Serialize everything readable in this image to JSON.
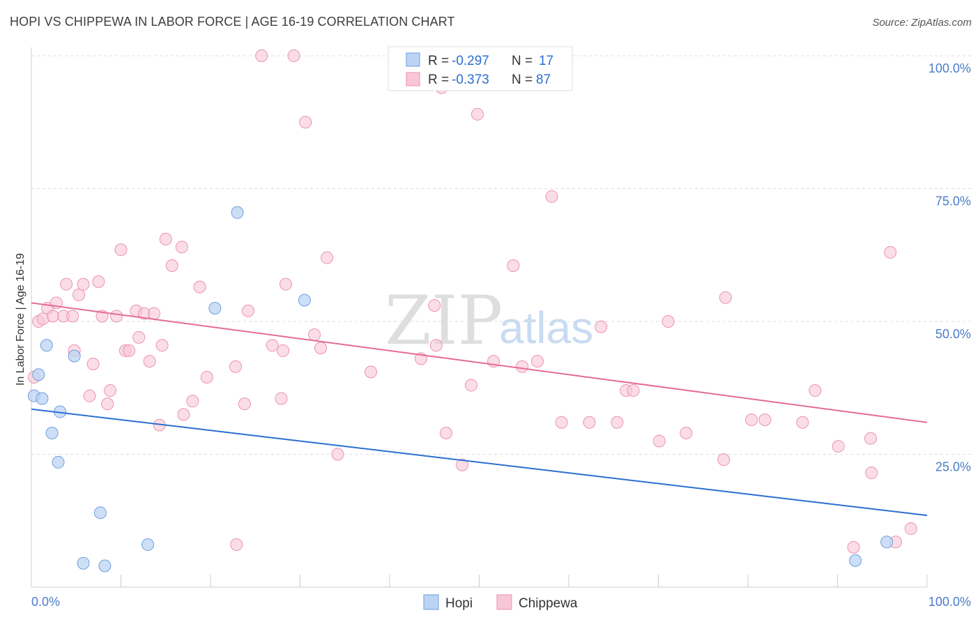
{
  "header": {
    "title": "HOPI VS CHIPPEWA IN LABOR FORCE | AGE 16-19 CORRELATION CHART",
    "source": "Source: ZipAtlas.com"
  },
  "watermark": {
    "zip": "ZIP",
    "atlas": "atlas"
  },
  "legend_top": {
    "hopi": {
      "r_label": "R = ",
      "r_value": "-0.297",
      "n_label": "N = ",
      "n_value": "17"
    },
    "chippewa": {
      "r_label": "R = ",
      "r_value": "-0.373",
      "n_label": "N = ",
      "n_value": "87"
    }
  },
  "legend_bottom": {
    "hopi": "Hopi",
    "chippewa": "Chippewa"
  },
  "colors": {
    "hopi_fill": "#bcd4f4",
    "hopi_stroke": "#6d9ede",
    "hopi_line": "#2a6fd1",
    "chippewa_fill": "#f9c6d6",
    "chippewa_stroke": "#ea93b0",
    "chippewa_line": "#e56b94",
    "accent_text": "#4a7cc9"
  },
  "chart_data": {
    "type": "scatter",
    "title": "HOPI VS CHIPPEWA IN LABOR FORCE | AGE 16-19 CORRELATION CHART",
    "xlabel": "",
    "ylabel": "In Labor Force | Age 16-19",
    "xlim": [
      0,
      100
    ],
    "ylim": [
      0,
      100
    ],
    "x_tick_labels": [
      "0.0%",
      "100.0%"
    ],
    "y_ticks": [
      25,
      50,
      75,
      100
    ],
    "y_tick_labels": [
      "25.0%",
      "50.0%",
      "75.0%",
      "100.0%"
    ],
    "grid": "horizontal dashed",
    "legend": "top-center",
    "series": [
      {
        "name": "Hopi",
        "R": -0.297,
        "N": 17,
        "trend": [
          [
            0,
            33.5
          ],
          [
            100,
            13.5
          ]
        ],
        "points": [
          [
            0.3,
            36
          ],
          [
            0.8,
            40
          ],
          [
            1.2,
            35.5
          ],
          [
            1.7,
            45.5
          ],
          [
            2.3,
            29
          ],
          [
            3.0,
            23.5
          ],
          [
            3.2,
            33
          ],
          [
            4.8,
            43.5
          ],
          [
            5.8,
            4.5
          ],
          [
            7.7,
            14
          ],
          [
            8.2,
            4
          ],
          [
            13,
            8
          ],
          [
            20.5,
            52.5
          ],
          [
            23,
            70.5
          ],
          [
            30.5,
            54
          ],
          [
            92,
            5
          ],
          [
            95.5,
            8.5
          ]
        ]
      },
      {
        "name": "Chippewa",
        "R": -0.373,
        "N": 87,
        "trend": [
          [
            0,
            53.5
          ],
          [
            100,
            31
          ]
        ],
        "points": [
          [
            0.3,
            39.5
          ],
          [
            0.8,
            50
          ],
          [
            1.3,
            50.5
          ],
          [
            1.8,
            52.5
          ],
          [
            2.4,
            51
          ],
          [
            2.8,
            53.5
          ],
          [
            3.6,
            51
          ],
          [
            3.9,
            57
          ],
          [
            4.6,
            51
          ],
          [
            4.8,
            44.5
          ],
          [
            5.3,
            55
          ],
          [
            5.8,
            57
          ],
          [
            6.5,
            36
          ],
          [
            6.9,
            42
          ],
          [
            7.5,
            57.5
          ],
          [
            7.9,
            51
          ],
          [
            8.5,
            34.5
          ],
          [
            8.8,
            37
          ],
          [
            9.5,
            51
          ],
          [
            10,
            63.5
          ],
          [
            10.5,
            44.5
          ],
          [
            10.9,
            44.5
          ],
          [
            11.7,
            52
          ],
          [
            12,
            47
          ],
          [
            12.6,
            51.5
          ],
          [
            13.2,
            42.5
          ],
          [
            13.7,
            51.5
          ],
          [
            14.3,
            30.5
          ],
          [
            14.6,
            45.5
          ],
          [
            15,
            65.5
          ],
          [
            15.7,
            60.5
          ],
          [
            16.8,
            64
          ],
          [
            17,
            32.5
          ],
          [
            18,
            35
          ],
          [
            18.8,
            56.5
          ],
          [
            19.6,
            39.5
          ],
          [
            22.8,
            41.5
          ],
          [
            22.9,
            8
          ],
          [
            23.8,
            34.5
          ],
          [
            24.2,
            52
          ],
          [
            25.7,
            100
          ],
          [
            26.9,
            45.5
          ],
          [
            27.9,
            35.5
          ],
          [
            28.1,
            44.5
          ],
          [
            28.4,
            57
          ],
          [
            29.3,
            100
          ],
          [
            30.6,
            87.5
          ],
          [
            31.6,
            47.5
          ],
          [
            32.3,
            45
          ],
          [
            33,
            62
          ],
          [
            34.2,
            25
          ],
          [
            37.9,
            40.5
          ],
          [
            43.5,
            43
          ],
          [
            45,
            53
          ],
          [
            45.2,
            45.5
          ],
          [
            45.8,
            94
          ],
          [
            46.3,
            29
          ],
          [
            48.1,
            23
          ],
          [
            49.1,
            38
          ],
          [
            49.8,
            89
          ],
          [
            51.6,
            42.5
          ],
          [
            53.8,
            60.5
          ],
          [
            54.8,
            41.5
          ],
          [
            56.5,
            42.5
          ],
          [
            58.1,
            73.5
          ],
          [
            59.2,
            31
          ],
          [
            62.3,
            31
          ],
          [
            63.6,
            49
          ],
          [
            65.4,
            31
          ],
          [
            66.4,
            37
          ],
          [
            67.2,
            37
          ],
          [
            70.1,
            27.5
          ],
          [
            71.1,
            50
          ],
          [
            73.1,
            29
          ],
          [
            77.3,
            24
          ],
          [
            77.5,
            54.5
          ],
          [
            80.4,
            31.5
          ],
          [
            81.9,
            31.5
          ],
          [
            86.1,
            31
          ],
          [
            87.5,
            37
          ],
          [
            90.1,
            26.5
          ],
          [
            91.8,
            7.5
          ],
          [
            93.7,
            28
          ],
          [
            93.8,
            21.5
          ],
          [
            95.9,
            63
          ],
          [
            96.5,
            8.5
          ],
          [
            98.2,
            11
          ]
        ]
      }
    ]
  }
}
